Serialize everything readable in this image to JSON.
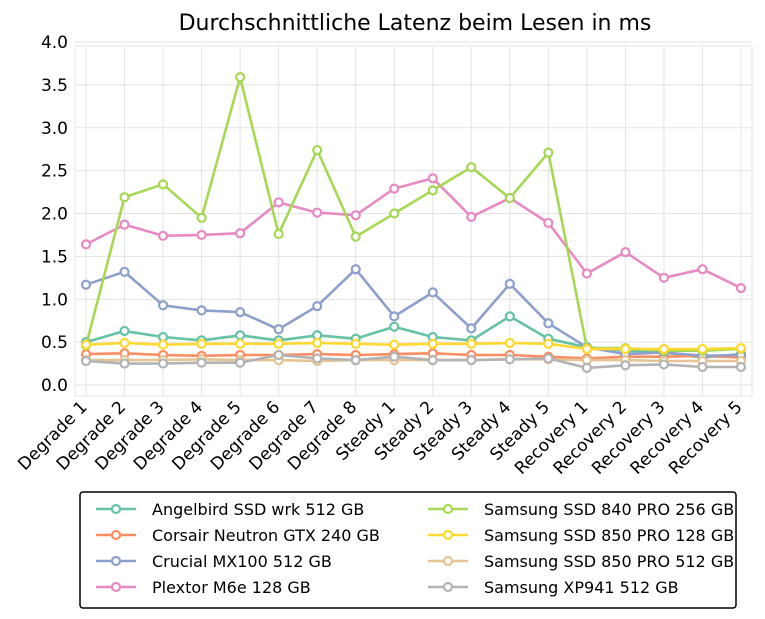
{
  "chart_data": {
    "type": "line",
    "title": "Durchschnittliche Latenz beim Lesen in ms",
    "xlabel": "",
    "ylabel": "",
    "ylim": [
      0.0,
      4.0
    ],
    "yticks": [
      "0.0",
      "0.5",
      "1.0",
      "1.5",
      "2.0",
      "2.5",
      "3.0",
      "3.5",
      "4.0"
    ],
    "grid": true,
    "legend_position": "bottom",
    "categories": [
      "Degrade 1",
      "Degrade 2",
      "Degrade 3",
      "Degrade 4",
      "Degrade 5",
      "Degrade 6",
      "Degrade 7",
      "Degrade 8",
      "Steady 1",
      "Steady 2",
      "Steady 3",
      "Steady 4",
      "Steady 5",
      "Recovery 1",
      "Recovery 2",
      "Recovery 3",
      "Recovery 4",
      "Recovery 5"
    ],
    "series": [
      {
        "name": "Angelbird SSD wrk 512 GB",
        "color": "#66c2a5",
        "values": [
          0.5,
          0.63,
          0.56,
          0.52,
          0.58,
          0.52,
          0.58,
          0.54,
          0.68,
          0.56,
          0.52,
          0.8,
          0.54,
          0.44,
          0.4,
          0.38,
          0.32,
          0.36
        ]
      },
      {
        "name": "Corsair Neutron GTX 240 GB",
        "color": "#fc8d62",
        "values": [
          0.36,
          0.37,
          0.35,
          0.34,
          0.35,
          0.35,
          0.36,
          0.35,
          0.36,
          0.37,
          0.35,
          0.35,
          0.33,
          0.31,
          0.33,
          0.33,
          0.34,
          0.32
        ]
      },
      {
        "name": "Crucial MX100 512 GB",
        "color": "#8da0cb",
        "values": [
          1.17,
          1.32,
          0.93,
          0.87,
          0.85,
          0.65,
          0.92,
          1.35,
          0.8,
          1.08,
          0.66,
          1.18,
          0.72,
          0.44,
          0.36,
          0.38,
          0.34,
          0.35
        ]
      },
      {
        "name": "Plextor M6e 128 GB",
        "color": "#e78ac3",
        "values": [
          1.64,
          1.87,
          1.74,
          1.75,
          1.77,
          2.13,
          2.01,
          1.98,
          2.29,
          2.41,
          1.96,
          2.18,
          1.89,
          1.3,
          1.55,
          1.25,
          1.35,
          1.13
        ]
      },
      {
        "name": "Samsung SSD 840 PRO 256 GB",
        "color": "#a6d854",
        "values": [
          0.46,
          2.19,
          2.34,
          1.95,
          3.59,
          1.76,
          2.74,
          1.73,
          2.0,
          2.27,
          2.54,
          2.18,
          2.71,
          0.43,
          0.43,
          0.4,
          0.4,
          0.42
        ]
      },
      {
        "name": "Samsung SSD 850 PRO 128 GB",
        "color": "#ffd92f",
        "values": [
          0.47,
          0.49,
          0.47,
          0.48,
          0.48,
          0.48,
          0.49,
          0.48,
          0.47,
          0.48,
          0.48,
          0.49,
          0.48,
          0.42,
          0.42,
          0.42,
          0.42,
          0.43
        ]
      },
      {
        "name": "Samsung SSD 850 PRO 512 GB",
        "color": "#e5c494",
        "values": [
          0.29,
          0.29,
          0.29,
          0.3,
          0.29,
          0.29,
          0.28,
          0.29,
          0.29,
          0.29,
          0.29,
          0.3,
          0.3,
          0.29,
          0.29,
          0.28,
          0.28,
          0.28
        ]
      },
      {
        "name": "Samsung XP941 512 GB",
        "color": "#b3b3b3",
        "values": [
          0.28,
          0.25,
          0.25,
          0.26,
          0.26,
          0.35,
          0.31,
          0.29,
          0.33,
          0.29,
          0.29,
          0.3,
          0.31,
          0.2,
          0.23,
          0.24,
          0.21,
          0.21
        ]
      }
    ]
  }
}
